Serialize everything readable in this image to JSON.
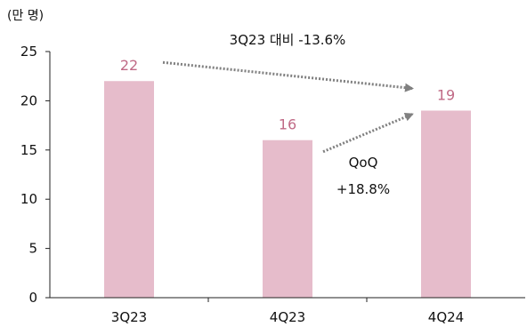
{
  "chart_data": {
    "type": "bar",
    "categories": [
      "3Q23",
      "4Q23",
      "4Q24"
    ],
    "values": [
      22,
      16,
      19
    ],
    "data_labels": [
      "22",
      "16",
      "19"
    ],
    "ylabel": "(만 명)",
    "ylim": [
      0,
      25
    ],
    "yticks": [
      0,
      5,
      10,
      15,
      20,
      25
    ],
    "grid": false,
    "legend": "none",
    "bar_color": "#e6bccb",
    "label_color": "#c06a86",
    "annotations": [
      {
        "id": "yoy",
        "text": "3Q23 대비 -13.6%",
        "from": "3Q23",
        "to": "4Q24"
      },
      {
        "id": "qoq",
        "lines": [
          "QoQ",
          "+18.8%"
        ],
        "from": "4Q23",
        "to": "4Q24"
      }
    ],
    "arrow_color": "#808080"
  }
}
